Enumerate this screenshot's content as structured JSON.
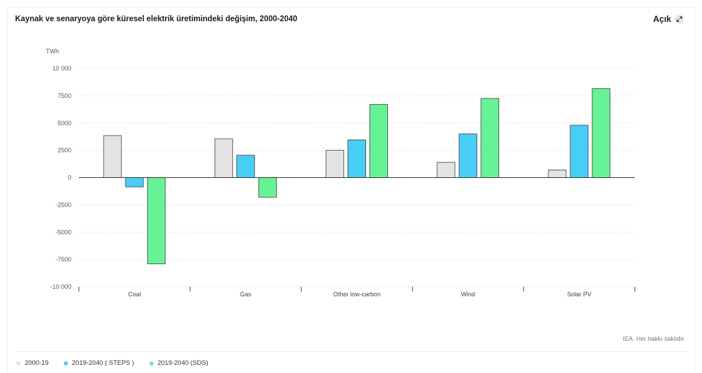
{
  "header": {
    "title": "Kaynak ve senaryoya göre küresel elektrik üretimindeki değişim, 2000-2040",
    "expand_label": "Açık",
    "expand_icon": "expand-arrows-icon"
  },
  "credit": "IEA. Her hakkı saklıdır",
  "legend": [
    {
      "label": "2000-19",
      "color": "#e3e3e3"
    },
    {
      "label": "2019-2040 ( STEPS )",
      "color": "#48cef6"
    },
    {
      "label": "2019-2040 (SDS)",
      "color": "#67f296"
    }
  ],
  "chart_data": {
    "type": "bar",
    "ylabel": "TWh",
    "ylim": [
      -10000,
      10000
    ],
    "yticks": [
      10000,
      7500,
      5000,
      2500,
      0,
      -2500,
      -5000,
      -7500,
      -10000
    ],
    "ytick_labels": [
      "10 000",
      "7500",
      "5000",
      "2500",
      "0",
      "-2500",
      "-5000",
      "-7500",
      "-10 000"
    ],
    "categories": [
      "Coal",
      "Gas",
      "Other low-carbon",
      "Wind",
      "Solar PV"
    ],
    "series": [
      {
        "name": "2000-19",
        "color": "#e3e3e3",
        "values": [
          3850,
          3550,
          2500,
          1400,
          700
        ]
      },
      {
        "name": "2019-2040 ( STEPS )",
        "color": "#48cef6",
        "values": [
          -850,
          2050,
          3450,
          4000,
          4800
        ]
      },
      {
        "name": "2019-2040 (SDS)",
        "color": "#67f296",
        "values": [
          -7900,
          -1800,
          6700,
          7250,
          8150
        ]
      }
    ],
    "grid": true,
    "legend_position": "bottom-left"
  }
}
